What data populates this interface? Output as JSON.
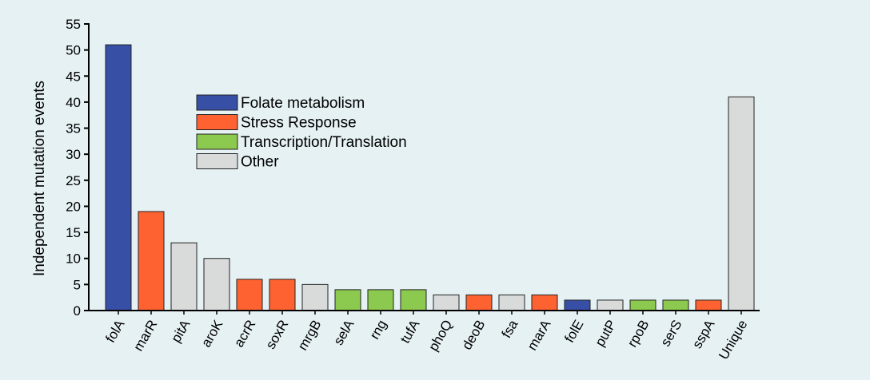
{
  "colors": {
    "background": "#e6f1f4",
    "Folate metabolism": "#3750a6",
    "Stress Response": "#ff6231",
    "Transcription/Translation": "#8cc94f",
    "Other": "#d9dbda"
  },
  "chart_data": {
    "type": "bar",
    "title": "",
    "xlabel": "",
    "ylabel": "Independent mutation events",
    "ylim": [
      0,
      55
    ],
    "yticks": [
      0,
      5,
      10,
      15,
      20,
      25,
      30,
      35,
      40,
      45,
      50,
      55
    ],
    "grid": false,
    "legend_position": "top-left",
    "legend": [
      "Folate metabolism",
      "Stress Response",
      "Transcription/Translation",
      "Other"
    ],
    "categories": [
      "folA",
      "marR",
      "pitA",
      "aroK",
      "acrR",
      "soxR",
      "mrgB",
      "selA",
      "rng",
      "tufA",
      "phoQ",
      "deoB",
      "fsa",
      "marA",
      "folE",
      "putP",
      "rpoB",
      "serS",
      "sspA",
      "Unique"
    ],
    "values": [
      51,
      19,
      13,
      10,
      6,
      6,
      5,
      4,
      4,
      4,
      3,
      3,
      3,
      3,
      2,
      2,
      2,
      2,
      2,
      41
    ],
    "groups": [
      "Folate metabolism",
      "Stress Response",
      "Other",
      "Other",
      "Stress Response",
      "Stress Response",
      "Other",
      "Transcription/Translation",
      "Transcription/Translation",
      "Transcription/Translation",
      "Other",
      "Stress Response",
      "Other",
      "Stress Response",
      "Folate metabolism",
      "Other",
      "Transcription/Translation",
      "Transcription/Translation",
      "Stress Response",
      "Other"
    ]
  }
}
